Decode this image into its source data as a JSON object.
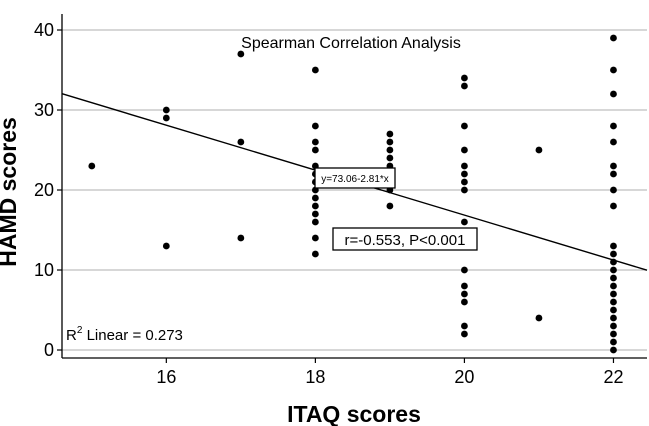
{
  "chart_data": {
    "type": "scatter",
    "title": "Spearman Correlation Analysis",
    "xlabel": "ITAQ scores",
    "ylabel": "HAMD scores",
    "xlim": [
      14.6,
      22.45
    ],
    "ylim": [
      -1,
      42
    ],
    "xticks": [
      16,
      18,
      20,
      22
    ],
    "yticks": [
      0,
      10,
      20,
      30,
      40
    ],
    "grid": "horizontal",
    "points": [
      [
        15,
        23
      ],
      [
        16,
        13
      ],
      [
        16,
        29
      ],
      [
        16,
        30
      ],
      [
        17,
        14
      ],
      [
        17,
        26
      ],
      [
        17,
        37
      ],
      [
        18,
        12
      ],
      [
        18,
        14
      ],
      [
        18,
        16
      ],
      [
        18,
        17
      ],
      [
        18,
        18
      ],
      [
        18,
        19
      ],
      [
        18,
        20
      ],
      [
        18,
        21
      ],
      [
        18,
        22
      ],
      [
        18,
        23
      ],
      [
        18,
        25
      ],
      [
        18,
        26
      ],
      [
        18,
        28
      ],
      [
        18,
        35
      ],
      [
        19,
        18
      ],
      [
        19,
        20
      ],
      [
        19,
        21
      ],
      [
        19,
        22
      ],
      [
        19,
        23
      ],
      [
        19,
        24
      ],
      [
        19,
        25
      ],
      [
        19,
        26
      ],
      [
        19,
        27
      ],
      [
        20,
        2
      ],
      [
        20,
        3
      ],
      [
        20,
        6
      ],
      [
        20,
        7
      ],
      [
        20,
        8
      ],
      [
        20,
        10
      ],
      [
        20,
        16
      ],
      [
        20,
        20
      ],
      [
        20,
        21
      ],
      [
        20,
        22
      ],
      [
        20,
        23
      ],
      [
        20,
        25
      ],
      [
        20,
        28
      ],
      [
        20,
        33
      ],
      [
        20,
        34
      ],
      [
        21,
        4
      ],
      [
        21,
        25
      ],
      [
        22,
        0
      ],
      [
        22,
        1
      ],
      [
        22,
        2
      ],
      [
        22,
        3
      ],
      [
        22,
        4
      ],
      [
        22,
        5
      ],
      [
        22,
        6
      ],
      [
        22,
        7
      ],
      [
        22,
        8
      ],
      [
        22,
        9
      ],
      [
        22,
        10
      ],
      [
        22,
        11
      ],
      [
        22,
        12
      ],
      [
        22,
        13
      ],
      [
        22,
        18
      ],
      [
        22,
        20
      ],
      [
        22,
        22
      ],
      [
        22,
        23
      ],
      [
        22,
        26
      ],
      [
        22,
        28
      ],
      [
        22,
        32
      ],
      [
        22,
        35
      ],
      [
        22,
        39
      ]
    ],
    "fit_line": {
      "intercept": 73.06,
      "slope": -2.81
    },
    "annotations": {
      "equation": "y=73.06-2.81*x",
      "correlation": "r=-0.553, P<0.001",
      "r2_prefix": "R",
      "r2_sup": "2",
      "r2_suffix": " Linear = 0.273"
    },
    "colors": {
      "points": "#000000",
      "line": "#000000",
      "grid": "#bfbfbf"
    }
  }
}
